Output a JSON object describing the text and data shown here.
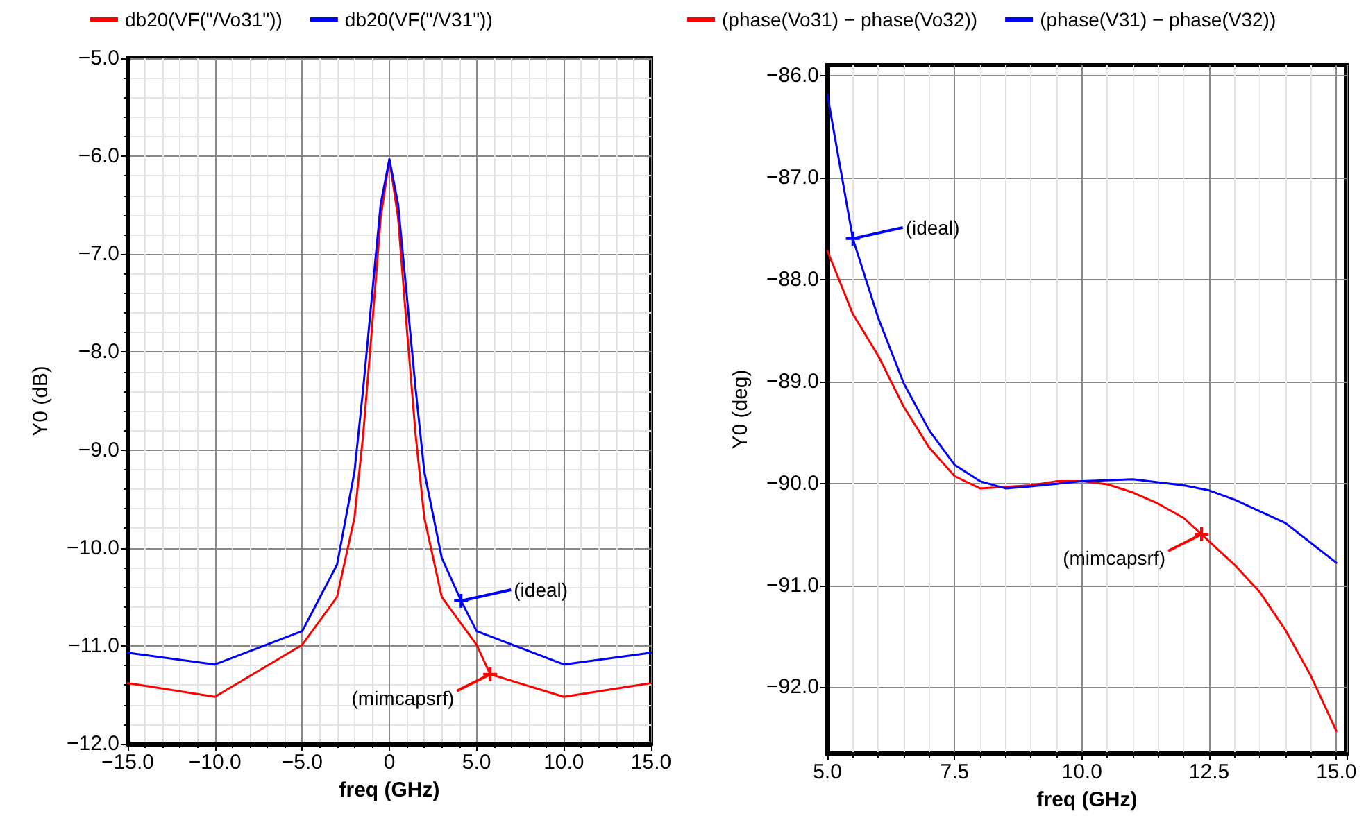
{
  "chart_data": [
    {
      "type": "line",
      "xlabel": "freq (GHz)",
      "ylabel": "Y0 (dB)",
      "xlim": [
        -15,
        15
      ],
      "ylim": [
        -12,
        -5
      ],
      "xticks": [
        {
          "value": -15,
          "label": "−15.0"
        },
        {
          "value": -10,
          "label": "−10.0"
        },
        {
          "value": -5,
          "label": "−5.0"
        },
        {
          "value": 0,
          "label": "0"
        },
        {
          "value": 5,
          "label": "5.0"
        },
        {
          "value": 10,
          "label": "10.0"
        },
        {
          "value": 15,
          "label": "15.0"
        }
      ],
      "yticks": [
        {
          "value": -12,
          "label": "−12.0"
        },
        {
          "value": -11,
          "label": "−11.0"
        },
        {
          "value": -10,
          "label": "−10.0"
        },
        {
          "value": -9,
          "label": "−9.0"
        },
        {
          "value": -8,
          "label": "−8.0"
        },
        {
          "value": -7,
          "label": "−7.0"
        },
        {
          "value": -6,
          "label": "−6.0"
        },
        {
          "value": -5,
          "label": "−5.0"
        }
      ],
      "grid": true,
      "legend": "top",
      "marker": "none",
      "line_style": "solid",
      "series": [
        {
          "name": "db20(VF(\"/Vo31\"))",
          "color": "#ff0000",
          "x": [
            -15,
            -10,
            -5,
            -3,
            -2,
            -1.5,
            -1,
            -0.5,
            0,
            0.5,
            1,
            1.5,
            2,
            3,
            5,
            5.78,
            10,
            15
          ],
          "values": [
            -11.38,
            -11.52,
            -10.99,
            -10.5,
            -9.69,
            -8.84,
            -7.76,
            -6.63,
            -6.03,
            -6.63,
            -7.76,
            -8.84,
            -9.69,
            -10.5,
            -10.99,
            -11.29,
            -11.52,
            -11.38
          ]
        },
        {
          "name": "db20(VF(\"/V31\"))",
          "color": "#0000ff",
          "x": [
            -15,
            -10,
            -5,
            -3,
            -2,
            -1.5,
            -1,
            -0.5,
            0,
            0.5,
            1,
            1.5,
            2,
            3,
            4.11,
            5,
            10,
            15
          ],
          "values": [
            -11.07,
            -11.19,
            -10.85,
            -10.17,
            -9.22,
            -8.37,
            -7.43,
            -6.49,
            -6.03,
            -6.49,
            -7.43,
            -8.37,
            -9.22,
            -10.1,
            -10.54,
            -10.85,
            -11.19,
            -11.07
          ]
        }
      ],
      "annotations": [
        {
          "text": "(ideal)",
          "x": 4.11,
          "y": -10.54
        },
        {
          "text": "(mimcapsrf)",
          "x": 5.78,
          "y": -11.29
        }
      ]
    },
    {
      "type": "line",
      "xlabel": "freq (GHz)",
      "ylabel": "Y0 (deg)",
      "xlim": [
        5,
        15.2
      ],
      "ylim": [
        -92.65,
        -85.9
      ],
      "xticks": [
        {
          "value": 5,
          "label": "5.0"
        },
        {
          "value": 7.5,
          "label": "7.5"
        },
        {
          "value": 10,
          "label": "10.0"
        },
        {
          "value": 12.5,
          "label": "12.5"
        },
        {
          "value": 15,
          "label": "15.0"
        }
      ],
      "yticks": [
        {
          "value": -92,
          "label": "−92.0"
        },
        {
          "value": -91,
          "label": "−91.0"
        },
        {
          "value": -90,
          "label": "−90.0"
        },
        {
          "value": -89,
          "label": "−89.0"
        },
        {
          "value": -88,
          "label": "−88.0"
        },
        {
          "value": -87,
          "label": "−87.0"
        },
        {
          "value": -86,
          "label": "−86.0"
        }
      ],
      "grid": true,
      "legend": "top",
      "marker": "none",
      "line_style": "solid",
      "series": [
        {
          "name": "(phase(Vo31) − phase(Vo32))",
          "color": "#ff0000",
          "x": [
            5,
            5.5,
            6,
            6.5,
            7,
            7.5,
            8,
            9,
            9.5,
            10,
            10.5,
            11,
            11.5,
            12,
            12.35,
            13,
            13.5,
            14,
            14.5,
            15
          ],
          "values": [
            -87.72,
            -88.34,
            -88.75,
            -89.25,
            -89.65,
            -89.93,
            -90.05,
            -90.02,
            -89.98,
            -89.98,
            -90.01,
            -90.09,
            -90.2,
            -90.34,
            -90.5,
            -90.8,
            -91.07,
            -91.44,
            -91.89,
            -92.43
          ]
        },
        {
          "name": "(phase(V31) − phase(V32))",
          "color": "#0000ff",
          "x": [
            5,
            5.5,
            6,
            6.5,
            7,
            7.5,
            8,
            8.5,
            9,
            10,
            11,
            12,
            12.5,
            13,
            14,
            15
          ],
          "values": [
            -86.19,
            -87.6,
            -88.38,
            -89.02,
            -89.48,
            -89.82,
            -89.98,
            -90.05,
            -90.03,
            -89.98,
            -89.96,
            -90.02,
            -90.07,
            -90.16,
            -90.39,
            -90.78
          ]
        }
      ],
      "annotations": [
        {
          "text": "(ideal)",
          "x": 5.5,
          "y": -87.6
        },
        {
          "text": "(mimcapsrf)",
          "x": 12.35,
          "y": -90.5
        }
      ]
    }
  ]
}
